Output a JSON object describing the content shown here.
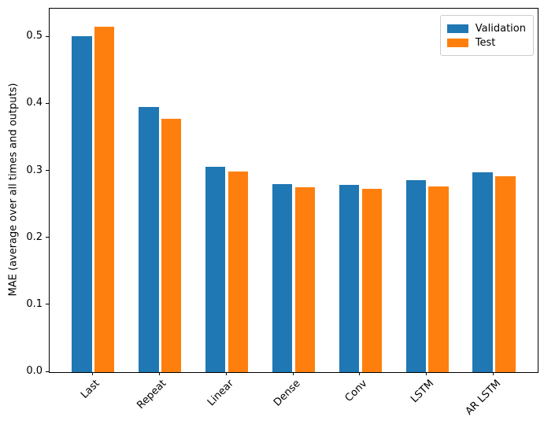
{
  "chart_data": {
    "type": "bar",
    "title": "",
    "xlabel": "",
    "ylabel": "MAE (average over all times and outputs)",
    "categories": [
      "Last",
      "Repeat",
      "Linear",
      "Dense",
      "Conv",
      "LSTM",
      "AR LSTM"
    ],
    "series": [
      {
        "name": "Validation",
        "color": "#1f77b4",
        "values": [
          0.502,
          0.396,
          0.307,
          0.281,
          0.28,
          0.286,
          0.298
        ]
      },
      {
        "name": "Test",
        "color": "#ff7f0e",
        "values": [
          0.516,
          0.378,
          0.299,
          0.276,
          0.274,
          0.277,
          0.292
        ]
      }
    ],
    "yticks": [
      "0.0",
      "0.1",
      "0.2",
      "0.3",
      "0.4",
      "0.5"
    ],
    "ylim": [
      0,
      0.5425
    ],
    "xlim": [
      -0.652,
      6.652
    ],
    "bar_width": 0.3,
    "bar_group_offset": 0.17,
    "grid": false,
    "legend": {
      "location": "upper right"
    }
  }
}
